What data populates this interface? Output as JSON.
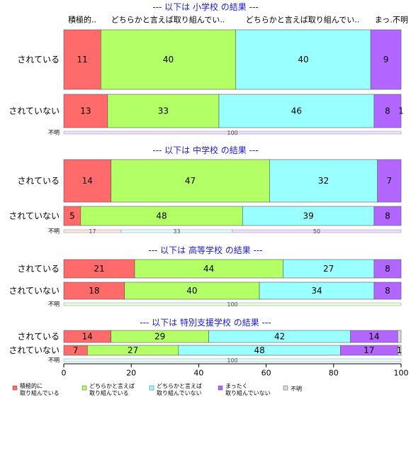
{
  "chart_data": {
    "type": "bar",
    "orientation": "horizontal-stacked-percent",
    "xlim": [
      0,
      100
    ],
    "x_ticks": [
      "0",
      "20",
      "40",
      "60",
      "80",
      "100"
    ],
    "grid": false,
    "legend_position": "bottom",
    "top_category_labels": [
      "積極的..",
      "どちらかと言えば取り組んでい..",
      "どちらかと言えば取り組んでい..",
      "まっ..",
      "不明"
    ],
    "legend": [
      {
        "label": "積極的に\n取り組んでいる",
        "color": "#ff6b6b"
      },
      {
        "label": "どちらかと言えば\n取り組んでいる",
        "color": "#b3ff66"
      },
      {
        "label": "どちらかと言えば\n取り組んでいない",
        "color": "#99ffff"
      },
      {
        "label": "まったく\n取り組んでいない",
        "color": "#b366ff"
      },
      {
        "label": "不明",
        "color": "#d9d9d9"
      }
    ],
    "panels": [
      {
        "title": "--- 以下は 小学校 の結果 ---",
        "rows": [
          {
            "label": "されている",
            "values": [
              11,
              40,
              40,
              9,
              0.5
            ],
            "labels": [
              "11",
              "40",
              "40",
              "9",
              ""
            ]
          },
          {
            "label": "されていない",
            "values": [
              13,
              33,
              46,
              8,
              1
            ],
            "labels": [
              "13",
              "33",
              "46",
              "8",
              "1"
            ]
          }
        ],
        "unknown_row": {
          "label": "不明",
          "values": [
            0,
            0,
            0,
            100,
            0
          ],
          "labels": [
            "",
            "",
            "",
            "100",
            ""
          ]
        }
      },
      {
        "title": "--- 以下は 中学校 の結果 ---",
        "rows": [
          {
            "label": "されている",
            "values": [
              14,
              47,
              32,
              7,
              0.3
            ],
            "labels": [
              "14",
              "47",
              "32",
              "7",
              ""
            ]
          },
          {
            "label": "されていない",
            "values": [
              5,
              48,
              39,
              8,
              0.3
            ],
            "labels": [
              "5",
              "48",
              "39",
              "8",
              ""
            ]
          }
        ],
        "unknown_row": {
          "label": "不明",
          "values": [
            17,
            0,
            33,
            50,
            0
          ],
          "labels": [
            "17",
            "",
            "33",
            "50",
            ""
          ]
        }
      },
      {
        "title": "--- 以下は 高等学校 の結果 ---",
        "rows": [
          {
            "label": "されている",
            "values": [
              21,
              44,
              27,
              8,
              0.3
            ],
            "labels": [
              "21",
              "44",
              "27",
              "8",
              ""
            ]
          },
          {
            "label": "されていない",
            "values": [
              18,
              40,
              34,
              8,
              0.3
            ],
            "labels": [
              "18",
              "40",
              "34",
              "8",
              ""
            ]
          }
        ],
        "unknown_row": {
          "label": "不明",
          "values": [
            0,
            100,
            0,
            0,
            0
          ],
          "labels": [
            "",
            "100",
            "",
            "",
            ""
          ]
        }
      },
      {
        "title": "--- 以下は 特別支援学校 の結果 ---",
        "rows": [
          {
            "label": "されている",
            "values": [
              14,
              29,
              42,
              14,
              1
            ],
            "labels": [
              "14",
              "29",
              "42",
              "14",
              ""
            ]
          },
          {
            "label": "されていない",
            "values": [
              7,
              27,
              48,
              17,
              1
            ],
            "labels": [
              "7",
              "27",
              "48",
              "17",
              "1"
            ]
          }
        ],
        "unknown_row": {
          "label": "不明",
          "values": [
            0,
            0,
            100,
            0,
            0
          ],
          "labels": [
            "",
            "",
            "100",
            "",
            ""
          ]
        }
      }
    ]
  }
}
